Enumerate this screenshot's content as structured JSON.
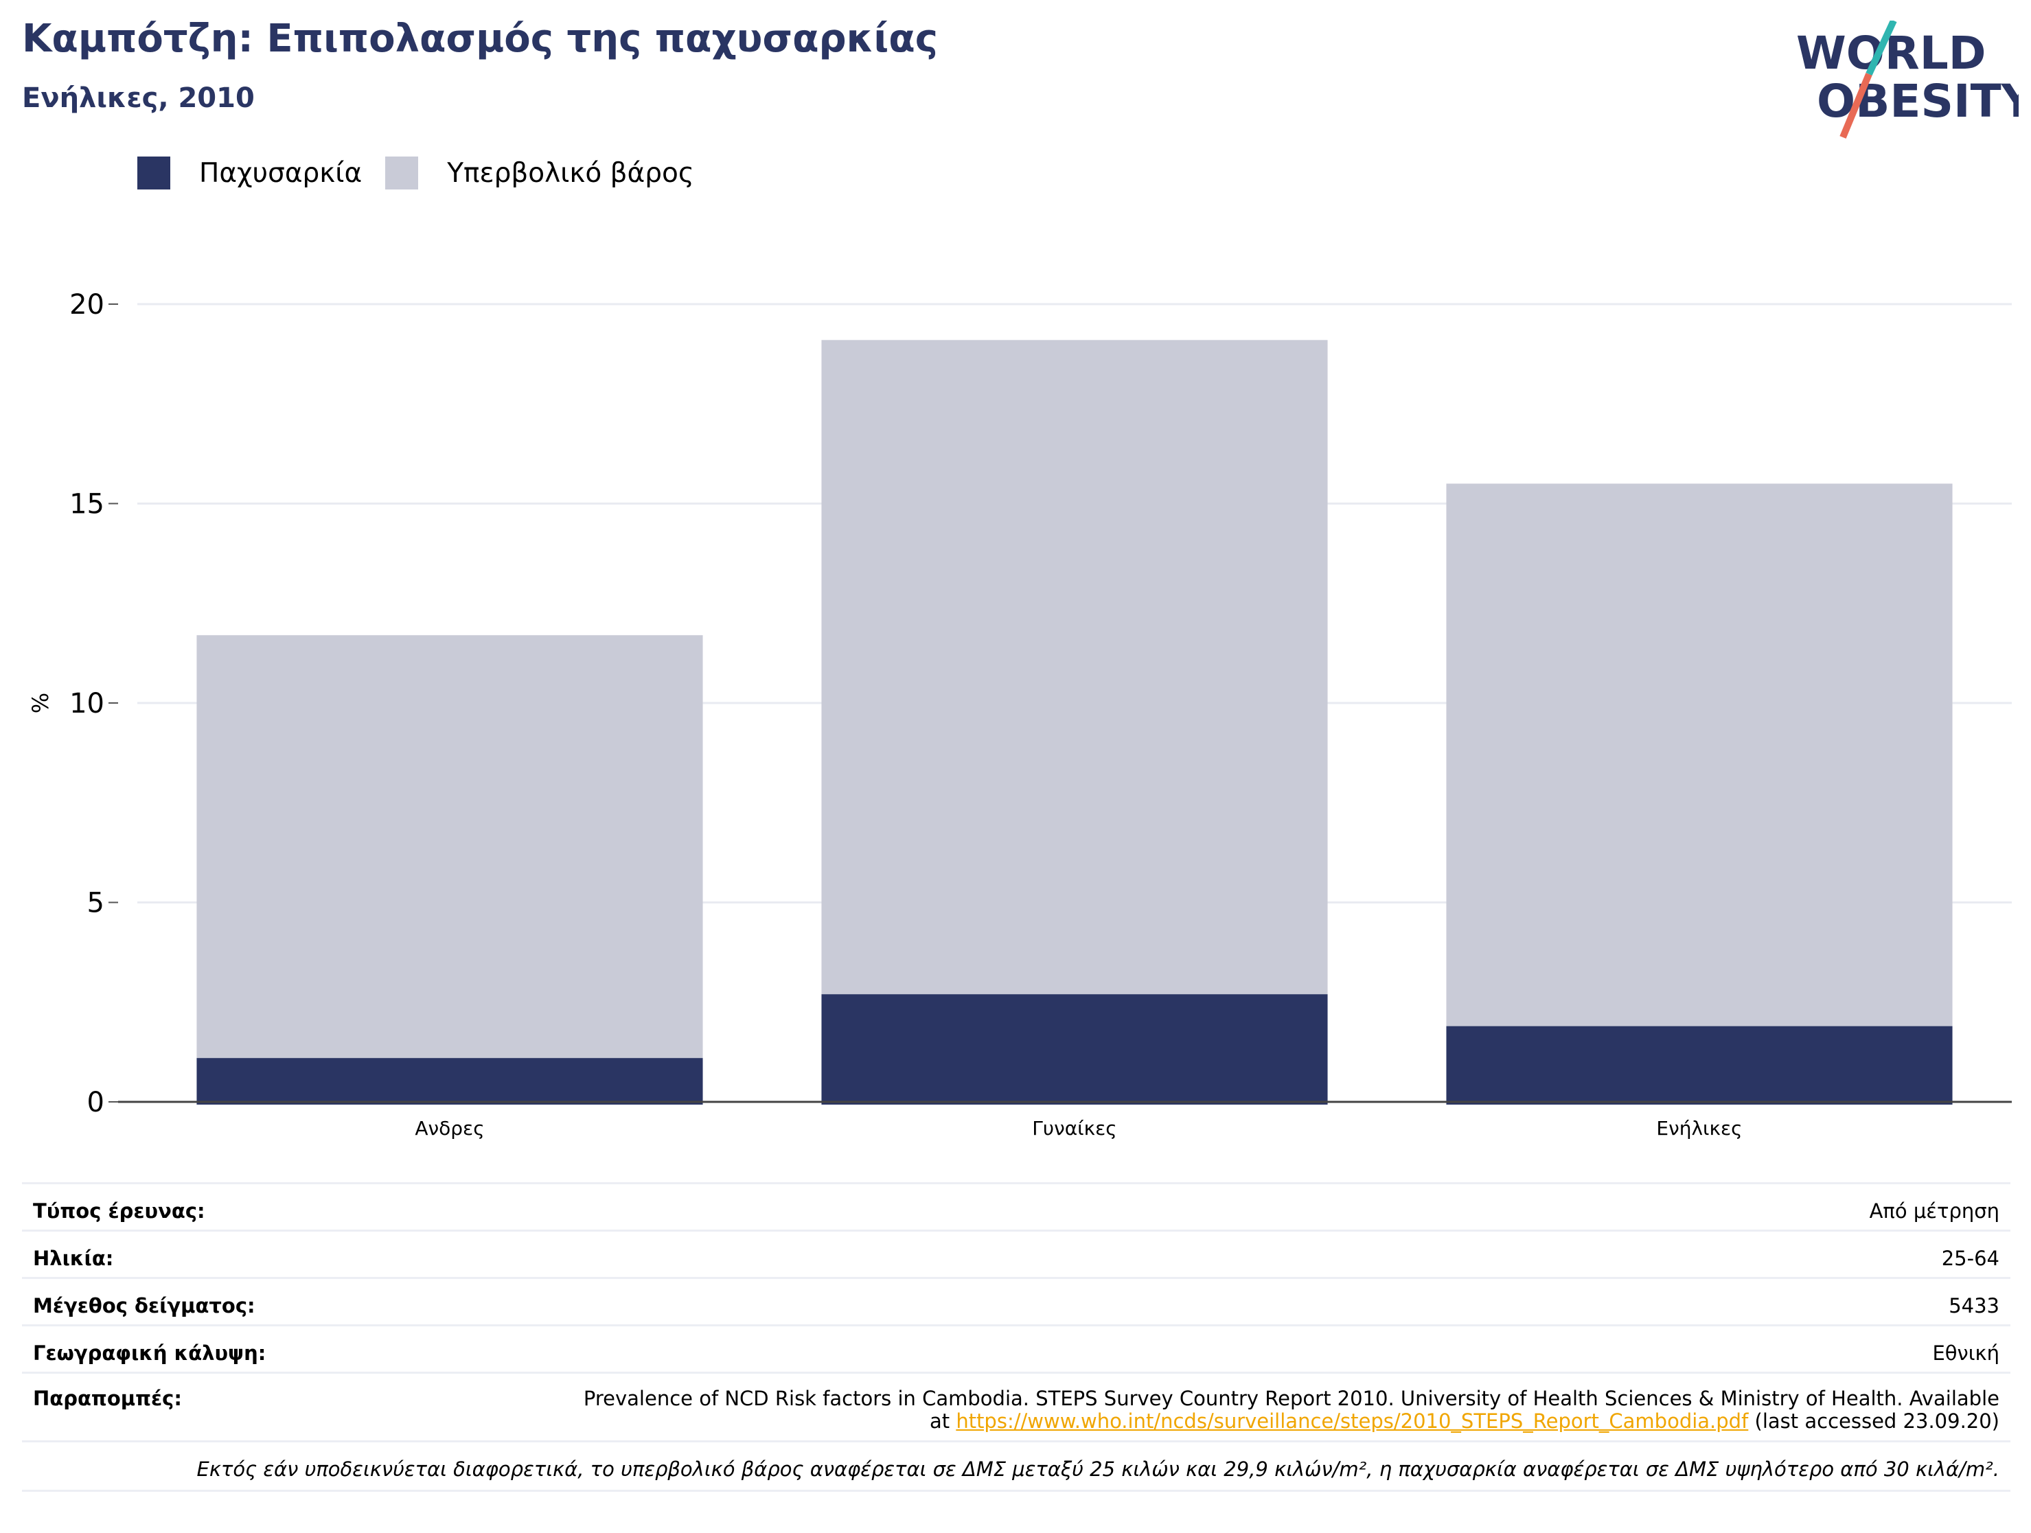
{
  "header": {
    "title": "Καμπότζη: Επιπολασμός της παχυσαρκίας",
    "subtitle": "Ενήλικες, 2010"
  },
  "logo": {
    "line1": "WORLD",
    "line2": "OBESITY",
    "colors": {
      "text": "#2a3563",
      "slash_top": "#2fb5b0",
      "slash_bottom": "#e86a55"
    }
  },
  "legend": [
    {
      "label": "Παχυσαρκία",
      "color": "#2a3563"
    },
    {
      "label": "Υπερβολικό βάρος",
      "color": "#c9cbd7"
    }
  ],
  "chart_data": {
    "type": "bar",
    "stacked": true,
    "categories": [
      "Ανδρες",
      "Γυναίκες",
      "Ενήλικες"
    ],
    "series": [
      {
        "name": "Παχυσαρκία",
        "values": [
          1.1,
          2.7,
          1.9
        ],
        "color": "#2a3563"
      },
      {
        "name": "Υπερβολικό βάρος",
        "values": [
          10.6,
          16.4,
          13.6
        ],
        "color": "#c9cbd7"
      }
    ],
    "ylabel": "%",
    "ylim": [
      0,
      20
    ],
    "yticks": [
      0,
      5,
      10,
      15,
      20
    ],
    "grid": true
  },
  "info": {
    "rows": [
      {
        "key": "Τύπος έρευνας:",
        "value": "Από μέτρηση"
      },
      {
        "key": "Ηλικία:",
        "value": "25-64"
      },
      {
        "key": "Μέγεθος δείγματος:",
        "value": "5433"
      },
      {
        "key": "Γεωγραφική κάλυψη:",
        "value": "Εθνική"
      }
    ],
    "refs_key": "Παραπομπές:",
    "refs_text_1": "Prevalence of NCD Risk factors in Cambodia. STEPS Survey Country Report 2010. University of Health Sciences & Ministry of Health. Available",
    "refs_text_2_prefix": "at ",
    "refs_link": "https://www.who.int/ncds/surveillance/steps/2010_STEPS_Report_Cambodia.pdf",
    "refs_text_2_suffix": " (last accessed 23.09.20)",
    "note": "Εκτός εάν υποδεικνύεται διαφορετικά, το υπερβολικό βάρος αναφέρεται σε ΔΜΣ μεταξύ 25 κιλών και 29,9 κιλών/m², η παχυσαρκία αναφέρεται σε ΔΜΣ υψηλότερο από 30 κιλά/m²."
  }
}
